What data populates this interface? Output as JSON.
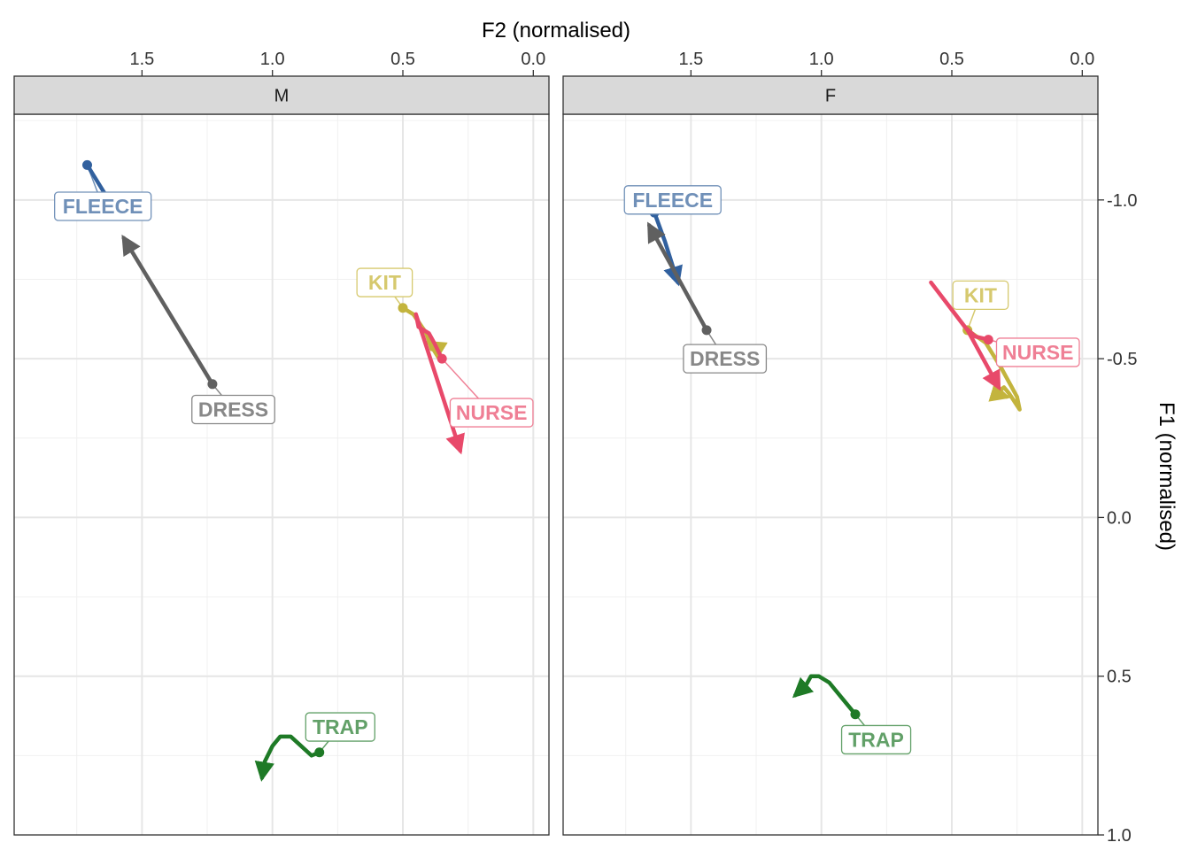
{
  "chart_data": {
    "type": "line",
    "xlabel": "F2 (normalised)",
    "ylabel": "F1 (normalised)",
    "x_reversed": true,
    "y_reversed": true,
    "xlim": [
      1.99,
      -0.06
    ],
    "ylim": [
      -1.27,
      1.0
    ],
    "x_ticks": [
      1.5,
      1.0,
      0.5,
      0.0
    ],
    "x_tick_labels": [
      "1.5",
      "1.0",
      "0.5",
      "0.0"
    ],
    "y_ticks": [
      -1.0,
      -0.5,
      0.0,
      0.5,
      1.0
    ],
    "y_tick_labels": [
      "-1.0",
      "-0.5",
      "0.0",
      "0.5",
      "1.0"
    ],
    "grid": true,
    "x_axis_position": "top",
    "y_axis_position": "right",
    "panels": [
      {
        "name": "M",
        "series": [
          {
            "name": "FLEECE",
            "color": "#31609e",
            "label_color": "#7090b8",
            "label_pos": {
              "x": 1.65,
              "y": -0.98
            },
            "points": [
              {
                "x": 1.71,
                "y": -1.11
              },
              {
                "x": 1.59,
                "y": -0.95
              }
            ]
          },
          {
            "name": "DRESS",
            "color": "#606060",
            "label_color": "#888888",
            "label_pos": {
              "x": 1.15,
              "y": -0.34
            },
            "points": [
              {
                "x": 1.23,
                "y": -0.42
              },
              {
                "x": 1.57,
                "y": -0.88
              }
            ]
          },
          {
            "name": "KIT",
            "color": "#c3b43d",
            "label_color": "#d6c96e",
            "label_pos": {
              "x": 0.57,
              "y": -0.74
            },
            "points": [
              {
                "x": 0.5,
                "y": -0.66
              },
              {
                "x": 0.46,
                "y": -0.64
              },
              {
                "x": 0.41,
                "y": -0.58
              },
              {
                "x": 0.39,
                "y": -0.53
              },
              {
                "x": 0.36,
                "y": -0.53
              },
              {
                "x": 0.4,
                "y": -0.55
              }
            ]
          },
          {
            "name": "NURSE",
            "color": "#e8496a",
            "label_color": "#ef7f95",
            "label_pos": {
              "x": 0.16,
              "y": -0.33
            },
            "points": [
              {
                "x": 0.35,
                "y": -0.5
              },
              {
                "x": 0.38,
                "y": -0.55
              },
              {
                "x": 0.4,
                "y": -0.58
              },
              {
                "x": 0.44,
                "y": -0.6
              },
              {
                "x": 0.45,
                "y": -0.64
              },
              {
                "x": 0.28,
                "y": -0.21
              }
            ]
          },
          {
            "name": "TRAP",
            "color": "#1e7a26",
            "label_color": "#62a068",
            "label_pos": {
              "x": 0.74,
              "y": 0.66
            },
            "points": [
              {
                "x": 0.82,
                "y": 0.74
              },
              {
                "x": 0.85,
                "y": 0.75
              },
              {
                "x": 0.89,
                "y": 0.72
              },
              {
                "x": 0.93,
                "y": 0.69
              },
              {
                "x": 0.97,
                "y": 0.69
              },
              {
                "x": 1.0,
                "y": 0.72
              },
              {
                "x": 1.03,
                "y": 0.77
              },
              {
                "x": 1.04,
                "y": 0.82
              }
            ]
          }
        ]
      },
      {
        "name": "F",
        "series": [
          {
            "name": "FLEECE",
            "color": "#31609e",
            "label_color": "#7090b8",
            "label_pos": {
              "x": 1.57,
              "y": -1.0
            },
            "points": [
              {
                "x": 1.64,
                "y": -0.96
              },
              {
                "x": 1.6,
                "y": -0.87
              },
              {
                "x": 1.55,
                "y": -0.74
              }
            ]
          },
          {
            "name": "DRESS",
            "color": "#606060",
            "label_color": "#888888",
            "label_pos": {
              "x": 1.37,
              "y": -0.5
            },
            "points": [
              {
                "x": 1.44,
                "y": -0.59
              },
              {
                "x": 1.66,
                "y": -0.92
              }
            ]
          },
          {
            "name": "KIT",
            "color": "#c3b43d",
            "label_color": "#d6c96e",
            "label_pos": {
              "x": 0.39,
              "y": -0.7
            },
            "points": [
              {
                "x": 0.44,
                "y": -0.59
              },
              {
                "x": 0.37,
                "y": -0.55
              },
              {
                "x": 0.31,
                "y": -0.47
              },
              {
                "x": 0.25,
                "y": -0.38
              },
              {
                "x": 0.24,
                "y": -0.34
              },
              {
                "x": 0.28,
                "y": -0.39
              },
              {
                "x": 0.3,
                "y": -0.41
              },
              {
                "x": 0.33,
                "y": -0.39
              },
              {
                "x": 0.29,
                "y": -0.38
              }
            ]
          },
          {
            "name": "NURSE",
            "color": "#e8496a",
            "label_color": "#ef7f95",
            "label_pos": {
              "x": 0.17,
              "y": -0.52
            },
            "points": [
              {
                "x": 0.36,
                "y": -0.56
              },
              {
                "x": 0.41,
                "y": -0.57
              },
              {
                "x": 0.45,
                "y": -0.6
              },
              {
                "x": 0.58,
                "y": -0.74
              },
              {
                "x": 0.44,
                "y": -0.59
              },
              {
                "x": 0.32,
                "y": -0.41
              }
            ]
          },
          {
            "name": "TRAP",
            "color": "#1e7a26",
            "label_color": "#62a068",
            "label_pos": {
              "x": 0.79,
              "y": 0.7
            },
            "points": [
              {
                "x": 0.87,
                "y": 0.62
              },
              {
                "x": 0.92,
                "y": 0.57
              },
              {
                "x": 0.97,
                "y": 0.52
              },
              {
                "x": 1.01,
                "y": 0.5
              },
              {
                "x": 1.04,
                "y": 0.5
              },
              {
                "x": 1.06,
                "y": 0.53
              },
              {
                "x": 1.1,
                "y": 0.56
              }
            ]
          }
        ]
      }
    ]
  }
}
